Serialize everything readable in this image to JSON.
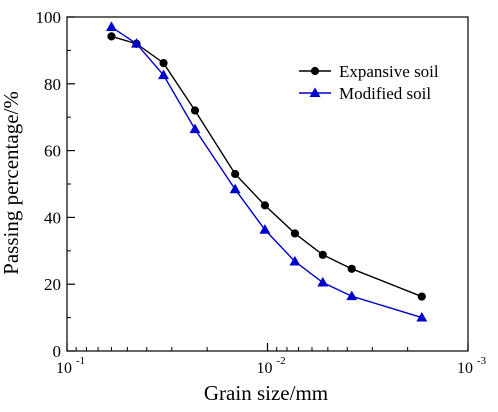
{
  "chart_data": {
    "type": "line",
    "xlabel": "Grain size/mm",
    "ylabel": "Passing percentage/%",
    "x_scale": "log",
    "x_direction": "reversed",
    "xlim": [
      0.1,
      0.001
    ],
    "ylim": [
      0,
      100
    ],
    "x_ticks": [
      {
        "value": 0.1,
        "base": "10",
        "exp": "-1"
      },
      {
        "value": 0.01,
        "base": "10",
        "exp": "-2"
      },
      {
        "value": 0.001,
        "base": "10",
        "exp": "-3"
      }
    ],
    "y_ticks": [
      "0",
      "20",
      "40",
      "60",
      "80",
      "100"
    ],
    "grid": false,
    "legend_position": "top-right",
    "series": [
      {
        "name": "Expansive soil",
        "color": "#000000",
        "marker": "circle",
        "x": [
          0.06,
          0.045,
          0.033,
          0.023,
          0.0145,
          0.0103,
          0.0073,
          0.0053,
          0.0038,
          0.0017
        ],
        "y": [
          94.2,
          92.0,
          86.2,
          72.0,
          53.0,
          43.6,
          35.2,
          28.8,
          24.6,
          16.3
        ]
      },
      {
        "name": "Modified soil",
        "color": "#0000cc",
        "marker": "triangle",
        "x": [
          0.06,
          0.045,
          0.033,
          0.023,
          0.0145,
          0.0103,
          0.0073,
          0.0053,
          0.0038,
          0.0017
        ],
        "y": [
          97.0,
          92.0,
          82.6,
          66.4,
          48.4,
          36.3,
          26.8,
          20.5,
          16.4,
          10.0
        ]
      }
    ]
  }
}
